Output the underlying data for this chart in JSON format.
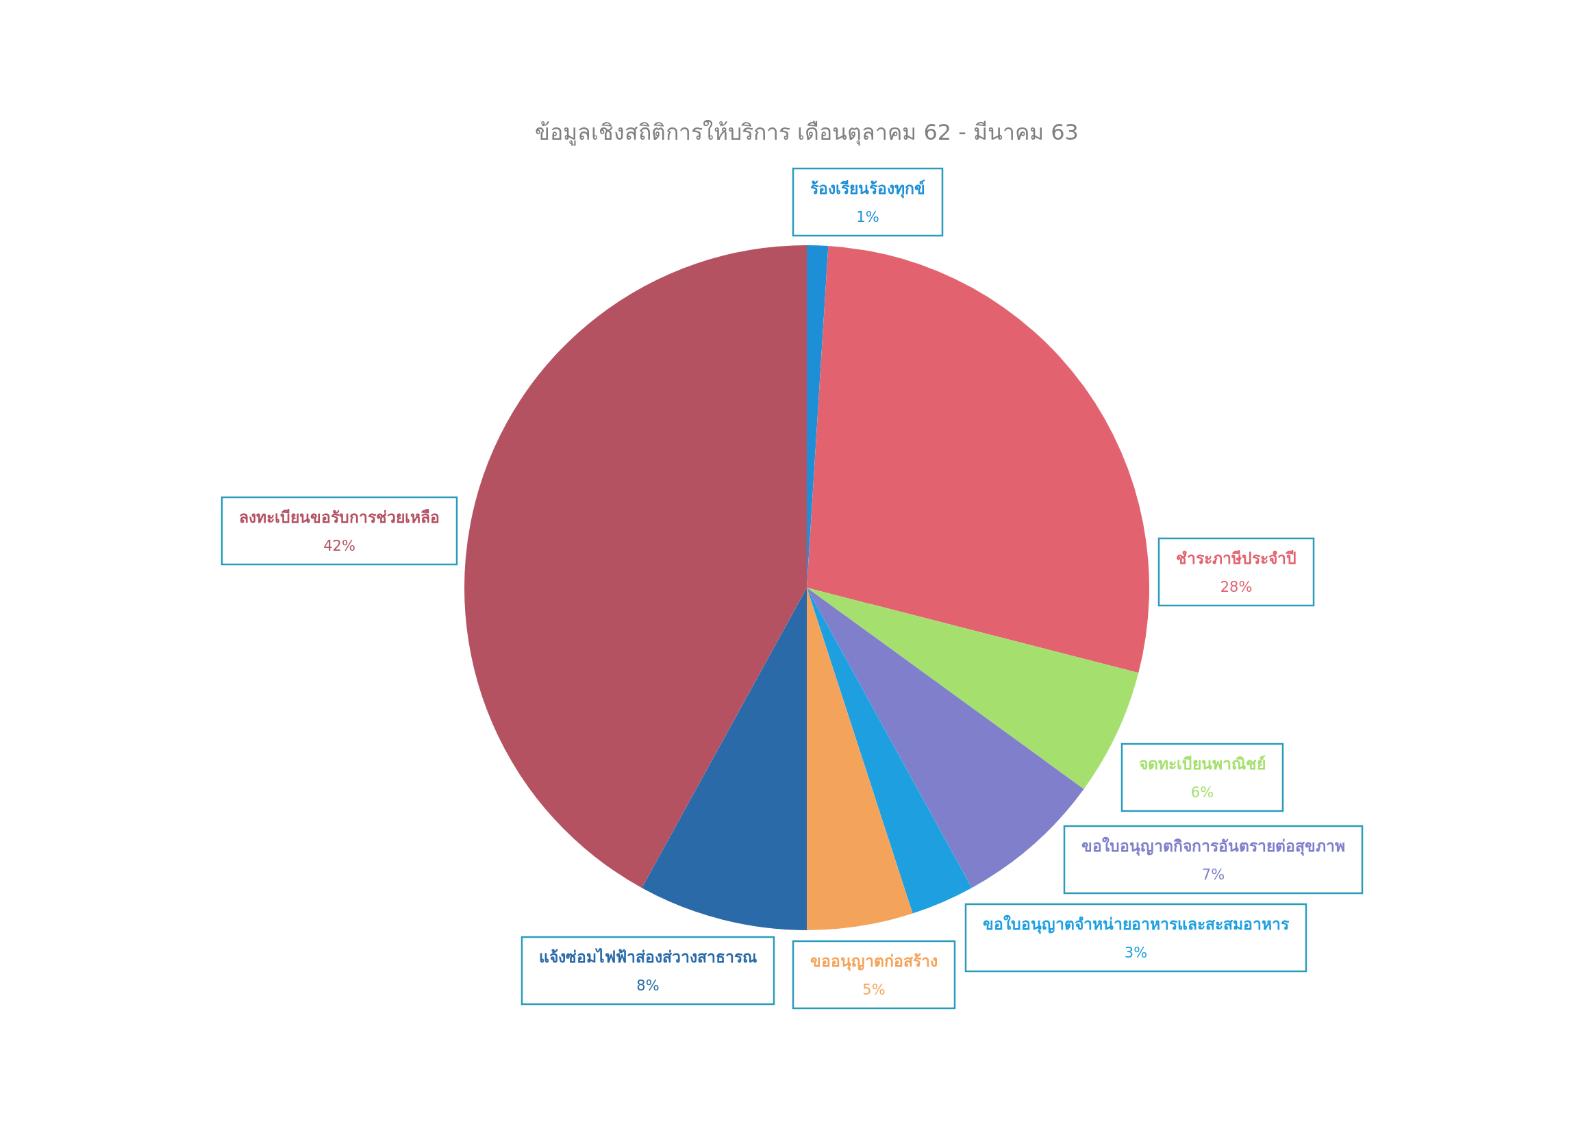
{
  "chart_data": {
    "type": "pie",
    "title": "ข้อมูลเชิงสถิติการให้บริการ เดือนตุลาคม 62 - มีนาคม 63",
    "categories": [
      "ร้องเรียนร้องทุกข์",
      "ชำระภาษีประจำปี",
      "จดทะเบียนพาณิชย์",
      "ขอใบอนุญาตกิจการอันตรายต่อสุขภาพ",
      "ขอใบอนุญาตจำหน่ายอาหารและสะสมอาหาร",
      "ขออนุญาตก่อสร้าง",
      "แจ้งซ่อมไฟฟ้าส่องส่วางสาธารณ",
      "ลงทะเบียนขอรับการช่วยเหลือ"
    ],
    "values": [
      1,
      28,
      6,
      7,
      3,
      5,
      8,
      42
    ],
    "colors": [
      "#1e8fd6",
      "#e2636f",
      "#a5e06e",
      "#7f7fcc",
      "#1ea0e0",
      "#f4a45a",
      "#2a6aa8",
      "#b45262"
    ],
    "value_labels": [
      "1%",
      "28%",
      "6%",
      "7%",
      "3%",
      "5%",
      "8%",
      "42%"
    ]
  }
}
